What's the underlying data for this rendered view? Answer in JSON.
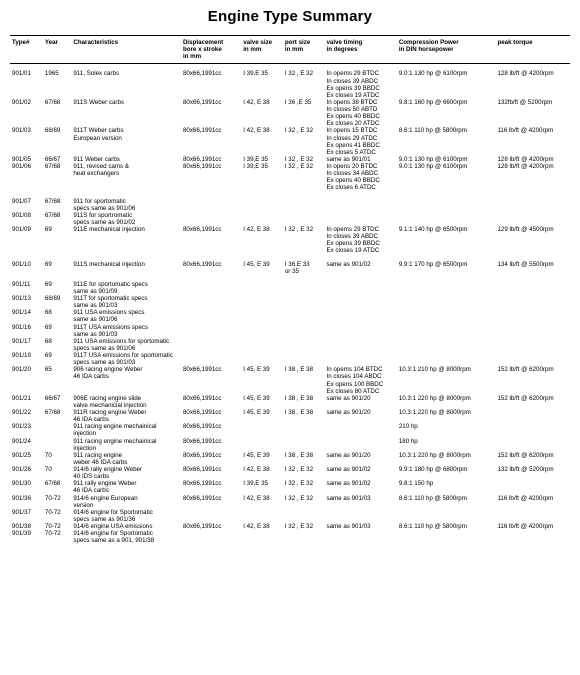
{
  "title": "Engine Type Summary",
  "columns": [
    {
      "key": "type",
      "label": "Type#"
    },
    {
      "key": "year",
      "label": "Year"
    },
    {
      "key": "char",
      "label": "Characteristics"
    },
    {
      "key": "disp",
      "label": "Displacement\nbore x stroke\nin mm"
    },
    {
      "key": "valve",
      "label": "valve size\nin mm"
    },
    {
      "key": "port",
      "label": "port size\nin mm"
    },
    {
      "key": "timing",
      "label": "valve timing\nin degrees"
    },
    {
      "key": "comp",
      "label": "Compression Power\nin DIN horsepower"
    },
    {
      "key": "peak",
      "label": "peak torque"
    }
  ],
  "rows": [
    {
      "gap": true,
      "type": "901/01",
      "year": "1965",
      "char": "911, Solex carbs",
      "disp": "80x66,1991cc",
      "valve": "I 39,E 35",
      "port": "I 32 , E 32",
      "timing": "In opems 29 BTDC\nIn closes 39 ABDC\nEx opens 39 BBDC\nEx closes 19 ATDC",
      "comp": "9.0:1 130 hp @ 6100rpm",
      "peak": "128 lb/ft @ 4200rpm"
    },
    {
      "type": "901/02",
      "year": "67/68",
      "char": "911S Weber carbs",
      "disp": "80x66,1991cc",
      "valve": "I 42, E 38",
      "port": "I 36 ,E 35",
      "timing": "In opens 38 BTDC\nIn closes 50 ABTD\nEx opens 40 BBDC\nEx closes 20 ATDC",
      "comp": "9.8:1 160 hp @ 6600rpm",
      "peak": "132fb/ft @ 5200rpm"
    },
    {
      "type": "901/03",
      "year": "68/69",
      "char": "911T Weber carbs\nEuropean version",
      "disp": "80x66,1991cc",
      "valve": "I 42, E 38",
      "port": "I 32 , E 32",
      "timing": "In opens 15 BTDC\nIn closes 29 ATDC\nEx opens 41 BBDC\nEx closes 5 ATDC",
      "comp": "8.6:1 110 hp @ 5800rpm",
      "peak": "116 lb/ft @ 4200rpm"
    },
    {
      "type": "901/05",
      "year": "66/67",
      "char": "911 Weber carbs",
      "disp": "80x66,1991cc",
      "valve": "I 39,E 35",
      "port": "I 32 , E 32",
      "timing": "same as 901/01",
      "comp": "9.0:1 130 hp @ 6100rpm",
      "peak": "128 lb/ft @ 4200rpm"
    },
    {
      "type": "901/06",
      "year": "67/68",
      "char": "911, revised cams &\nheat exchangers",
      "disp": "80x66,1991cc",
      "valve": "I 39,E 35",
      "port": "I 32 , E 32",
      "timing": "In opens 20 BTDC\nIn closes 34 ABDC\nEx opens 40 BBDC\nEx closes 6 ATDC",
      "comp": "9.0:1 130 hp @ 6100rpm",
      "peak": "128 lb/ft @ 4200rpm"
    },
    {
      "gap": true,
      "type": "901/07",
      "year": "67/68",
      "char": "911 for sportomatic\nspecs same as 901/06",
      "disp": "",
      "valve": "",
      "port": "",
      "timing": "",
      "comp": "",
      "peak": ""
    },
    {
      "type": "901/08",
      "year": "67/68",
      "char": "911S for sportromatic\nspecs same as 901/02",
      "disp": "",
      "valve": "",
      "port": "",
      "timing": "",
      "comp": "",
      "peak": ""
    },
    {
      "type": "901/09",
      "year": "69",
      "char": "911E mechanical injection",
      "disp": "80x66,1991cc",
      "valve": "I 42, E 38",
      "port": "I 32 , E 32",
      "timing": "In opems 29 BTDC\nIn closes 39 ABDC\nEx opens 39 BBDC\nEx closes 19 ATDC",
      "comp": "9.1:1 140 hp @ 6500rpm",
      "peak": "129 lb/ft @ 4500rpm"
    },
    {
      "gap": true,
      "type": "901/10",
      "year": "69",
      "char": "911S mechanical injection",
      "disp": "80x66,1991cc",
      "valve": "I 45, E 39",
      "port": "I 36,E 33\nor 35",
      "timing": "same as 901/02",
      "comp": "9.9:1 170 hp @ 6500rpm",
      "peak": "134 lb/ft @ 5500rpm"
    },
    {
      "gap": true,
      "type": "901/11",
      "year": "69",
      "char": "911E for sportomatic specs\nsame as 901/09",
      "disp": "",
      "valve": "",
      "port": "",
      "timing": "",
      "comp": "",
      "peak": ""
    },
    {
      "type": "901/13",
      "year": "68/69",
      "char": "911T for sportomatic specs\nsame as 901/03",
      "disp": "",
      "valve": "",
      "port": "",
      "timing": "",
      "comp": "",
      "peak": ""
    },
    {
      "type": "901/14",
      "year": "68",
      "char": "911 USA emissions specs\nsame as 901/06",
      "disp": "",
      "valve": "",
      "port": "",
      "timing": "",
      "comp": "",
      "peak": ""
    },
    {
      "type": "901/16",
      "year": "69",
      "char": "911T USA emissions specs\nsame as 901/03",
      "disp": "",
      "valve": "",
      "port": "",
      "timing": "",
      "comp": "",
      "peak": ""
    },
    {
      "type": "901/17",
      "year": "68",
      "char": "911 USA emissions for sportomatic\nspecs same as 901/06",
      "disp": "",
      "valve": "",
      "port": "",
      "timing": "",
      "comp": "",
      "peak": ""
    },
    {
      "type": "901/19",
      "year": "69",
      "char": "911T USA emissions for sportomatic\nspecs same as 901/03",
      "disp": "",
      "valve": "",
      "port": "",
      "timing": "",
      "comp": "",
      "peak": ""
    },
    {
      "type": "901/20",
      "year": "65",
      "char": "906 racing engine Weber\n46 IDA carbs",
      "disp": "80x66,1991cc",
      "valve": "I 45, E 39",
      "port": "I 38 , E 38",
      "timing": "In opems 104 BTDC\nIn closes 104 ABDC\nEx opens 100 BBDC\nEx closes 80 ATDC",
      "comp": "10.3:1 210 hp @ 8000rpm",
      "peak": "152 lb/ft @ 6200rpm"
    },
    {
      "type": "901/21",
      "year": "66/67",
      "char": "906E racing engine slide\nvalve mechanicial injection",
      "disp": "80x66,1991cc",
      "valve": "I 45, E 39",
      "port": "I 38 , E 38",
      "timing": "same as 901/20",
      "comp": "10.3:1 220 hp @ 8000rpm",
      "peak": "152 lb/ft @ 6200rpm"
    },
    {
      "type": "901/22",
      "year": "67/68",
      "char": "911R racing engine Weber\n46 IDA carbs",
      "disp": "80x66,1991cc",
      "valve": "I 45, E 39",
      "port": "I 38 , E 38",
      "timing": "same as 901/20",
      "comp": "10.3:1 220 hp @ 8000rpm",
      "peak": ""
    },
    {
      "type": "901/23",
      "year": "",
      "char": "911 racing engine mechainical\ninjection",
      "disp": "80x66,1991cc",
      "valve": "",
      "port": "",
      "timing": "",
      "comp": "210 hp",
      "peak": ""
    },
    {
      "type": "901/24",
      "year": "",
      "char": "911 racing engine mechainical\ninjection",
      "disp": "80x66,1991cc",
      "valve": "",
      "port": "",
      "timing": "",
      "comp": "180 hp",
      "peak": ""
    },
    {
      "type": "901/25",
      "year": "70",
      "char": "911 racing engine\nweber 46 IDA carbs",
      "disp": "80x66,1991cc",
      "valve": "I 45, E 39",
      "port": "I 38 , E 38",
      "timing": "same as 901/20",
      "comp": "10.3:1 220 hp @ 8000rpm",
      "peak": "152 lb/ft @ 6200rpm"
    },
    {
      "type": "901/26",
      "year": "70",
      "char": "914/6 rally engine Weber\n40 IDS carbs",
      "disp": "80x66,1991cc",
      "valve": "I 42, E 38",
      "port": "I 32 , E 32",
      "timing": "same as 901/02",
      "comp": "9.9:1 180 hp @ 6800rpm",
      "peak": "132 lb/ft @ 5200rpm"
    },
    {
      "type": "901/30",
      "year": "67/68",
      "char": "911 rally engine Weber\n46 IDA carbs",
      "disp": "80x66,1991cc",
      "valve": "I 39,E 35",
      "port": "I 32 , E 32",
      "timing": "same as 901/02",
      "comp": "9.8:1 150 hp",
      "peak": ""
    },
    {
      "type": "901/36",
      "year": "70-72",
      "char": "914/6 engine European\nversion",
      "disp": "80x66,1991cc",
      "valve": "I 42, E 38",
      "port": "I 32 , E 32",
      "timing": "same as 901/03",
      "comp": "8.6:1 110 hp @ 5800rpm",
      "peak": "116 lb/ft @ 4200rpm"
    },
    {
      "type": "901/37",
      "year": "70-72",
      "char": "914/6 engine for Sportomatic\nspecs same as 901/36",
      "disp": "",
      "valve": "",
      "port": "",
      "timing": "",
      "comp": "",
      "peak": ""
    },
    {
      "type": "901/38\n901/39",
      "year": "70-72\n70-72",
      "char": "914/6 engine USA emissions\n914/6 engine for Sportomatic\nspecs same as a 901, 901/38",
      "disp": "80x66,1991cc",
      "valve": "I 42, E 38",
      "port": "I 32 , E 32",
      "timing": "same as 901/03",
      "comp": "8.6:1 110 hp @ 5800rpm",
      "peak": "116 lb/ft @ 4200rpm"
    }
  ]
}
